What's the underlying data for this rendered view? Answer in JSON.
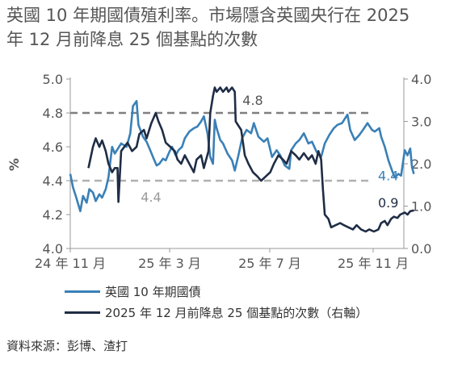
{
  "title": {
    "line1": "英國 10 年期國債殖利率。市場隱含英國央行在 2025",
    "line2": "年 12 月前降息 25 個基點的次數"
  },
  "chart_data": {
    "type": "line",
    "ylabel_left": "%",
    "ylim_left": [
      4.0,
      5.0
    ],
    "yticks_left": [
      "4.0",
      "4.2",
      "4.4",
      "4.6",
      "4.8",
      "5.0"
    ],
    "ylim_right": [
      0.0,
      4.0
    ],
    "yticks_right": [
      "0.0",
      "1.0",
      "2.0",
      "3.0",
      "4.0"
    ],
    "xlabels": [
      "24 年 11 月",
      "25 年 3 月",
      "25 年 7 月",
      "25 年 11 月"
    ],
    "x_domain": [
      "2024-11-01",
      "2025-11-03"
    ],
    "reference_lines": [
      {
        "axis": "left",
        "value": 4.8,
        "label": "4.8",
        "color": "#7f7f7f"
      },
      {
        "axis": "left",
        "value": 4.4,
        "label": "4.4",
        "color": "#b0b0b0"
      }
    ],
    "end_labels": {
      "series1": "4.4",
      "series2": "0.9"
    },
    "series": [
      {
        "name": "英國 10 年期國債",
        "axis": "left",
        "color": "#3a80b6",
        "points": [
          [
            "2024-11-01",
            4.44
          ],
          [
            "2024-11-04",
            4.36
          ],
          [
            "2024-11-07",
            4.31
          ],
          [
            "2024-11-12",
            4.22
          ],
          [
            "2024-11-15",
            4.31
          ],
          [
            "2024-11-19",
            4.27
          ],
          [
            "2024-11-22",
            4.35
          ],
          [
            "2024-11-26",
            4.33
          ],
          [
            "2024-11-29",
            4.28
          ],
          [
            "2024-12-03",
            4.32
          ],
          [
            "2024-12-06",
            4.3
          ],
          [
            "2024-12-10",
            4.35
          ],
          [
            "2024-12-13",
            4.42
          ],
          [
            "2024-12-17",
            4.6
          ],
          [
            "2024-12-20",
            4.56
          ],
          [
            "2024-12-27",
            4.62
          ],
          [
            "2025-01-02",
            4.6
          ],
          [
            "2025-01-06",
            4.68
          ],
          [
            "2025-01-09",
            4.84
          ],
          [
            "2025-01-13",
            4.87
          ],
          [
            "2025-01-15",
            4.73
          ],
          [
            "2025-01-20",
            4.66
          ],
          [
            "2025-01-24",
            4.63
          ],
          [
            "2025-01-28",
            4.58
          ],
          [
            "2025-01-31",
            4.54
          ],
          [
            "2025-02-04",
            4.49
          ],
          [
            "2025-02-07",
            4.5
          ],
          [
            "2025-02-11",
            4.53
          ],
          [
            "2025-02-14",
            4.52
          ],
          [
            "2025-02-18",
            4.57
          ],
          [
            "2025-02-21",
            4.6
          ],
          [
            "2025-02-25",
            4.55
          ],
          [
            "2025-02-28",
            4.58
          ],
          [
            "2025-03-04",
            4.6
          ],
          [
            "2025-03-07",
            4.65
          ],
          [
            "2025-03-12",
            4.69
          ],
          [
            "2025-03-17",
            4.71
          ],
          [
            "2025-03-21",
            4.72
          ],
          [
            "2025-03-25",
            4.75
          ],
          [
            "2025-03-28",
            4.78
          ],
          [
            "2025-04-01",
            4.68
          ],
          [
            "2025-04-04",
            4.54
          ],
          [
            "2025-04-07",
            4.5
          ],
          [
            "2025-04-09",
            4.76
          ],
          [
            "2025-04-11",
            4.71
          ],
          [
            "2025-04-15",
            4.64
          ],
          [
            "2025-04-18",
            4.62
          ],
          [
            "2025-04-23",
            4.56
          ],
          [
            "2025-04-28",
            4.52
          ],
          [
            "2025-05-01",
            4.46
          ],
          [
            "2025-05-05",
            4.55
          ],
          [
            "2025-05-09",
            4.65
          ],
          [
            "2025-05-14",
            4.7
          ],
          [
            "2025-05-19",
            4.68
          ],
          [
            "2025-05-22",
            4.74
          ],
          [
            "2025-05-27",
            4.66
          ],
          [
            "2025-06-02",
            4.63
          ],
          [
            "2025-06-06",
            4.65
          ],
          [
            "2025-06-11",
            4.54
          ],
          [
            "2025-06-16",
            4.58
          ],
          [
            "2025-06-20",
            4.55
          ],
          [
            "2025-06-25",
            4.49
          ],
          [
            "2025-06-30",
            4.47
          ],
          [
            "2025-07-02",
            4.58
          ],
          [
            "2025-07-07",
            4.62
          ],
          [
            "2025-07-11",
            4.64
          ],
          [
            "2025-07-16",
            4.68
          ],
          [
            "2025-07-21",
            4.62
          ],
          [
            "2025-07-25",
            4.63
          ],
          [
            "2025-07-30",
            4.57
          ],
          [
            "2025-08-04",
            4.54
          ],
          [
            "2025-08-08",
            4.62
          ],
          [
            "2025-08-13",
            4.67
          ],
          [
            "2025-08-18",
            4.71
          ],
          [
            "2025-08-22",
            4.73
          ],
          [
            "2025-08-27",
            4.74
          ],
          [
            "2025-09-02",
            4.79
          ],
          [
            "2025-09-05",
            4.7
          ],
          [
            "2025-09-10",
            4.64
          ],
          [
            "2025-09-15",
            4.67
          ],
          [
            "2025-09-19",
            4.7
          ],
          [
            "2025-09-24",
            4.74
          ],
          [
            "2025-09-29",
            4.7
          ],
          [
            "2025-10-02",
            4.69
          ],
          [
            "2025-10-07",
            4.71
          ],
          [
            "2025-10-09",
            4.66
          ],
          [
            "2025-10-13",
            4.6
          ],
          [
            "2025-10-17",
            4.52
          ],
          [
            "2025-10-21",
            4.46
          ],
          [
            "2025-10-24",
            4.42
          ],
          [
            "2025-10-28",
            4.44
          ],
          [
            "2025-10-31",
            4.43
          ],
          [
            "2025-11-04",
            4.58
          ],
          [
            "2025-11-07",
            4.55
          ],
          [
            "2025-11-10",
            4.59
          ],
          [
            "2025-11-12",
            4.48
          ],
          [
            "2025-11-14",
            4.44
          ]
        ]
      },
      {
        "name": "2025 年 12 月前降息 25 個基點的次數（右軸）",
        "axis": "right",
        "color": "#1f2d45",
        "points": [
          [
            "2024-11-21",
            1.9
          ],
          [
            "2024-11-26",
            2.4
          ],
          [
            "2024-11-29",
            2.6
          ],
          [
            "2024-12-03",
            2.4
          ],
          [
            "2024-12-06",
            2.55
          ],
          [
            "2024-12-10",
            2.3
          ],
          [
            "2024-12-13",
            2.0
          ],
          [
            "2024-12-17",
            1.8
          ],
          [
            "2024-12-20",
            1.9
          ],
          [
            "2024-12-23",
            1.9
          ],
          [
            "2024-12-24",
            1.1
          ],
          [
            "2024-12-27",
            2.3
          ],
          [
            "2025-01-03",
            2.5
          ],
          [
            "2025-01-08",
            2.3
          ],
          [
            "2025-01-13",
            2.4
          ],
          [
            "2025-01-16",
            2.7
          ],
          [
            "2025-01-21",
            2.8
          ],
          [
            "2025-01-24",
            2.6
          ],
          [
            "2025-01-29",
            2.95
          ],
          [
            "2025-02-03",
            3.2
          ],
          [
            "2025-02-06",
            3.0
          ],
          [
            "2025-02-10",
            2.8
          ],
          [
            "2025-02-14",
            2.5
          ],
          [
            "2025-02-19",
            2.4
          ],
          [
            "2025-02-24",
            2.3
          ],
          [
            "2025-02-27",
            2.1
          ],
          [
            "2025-03-03",
            2.0
          ],
          [
            "2025-03-07",
            2.2
          ],
          [
            "2025-03-12",
            2.0
          ],
          [
            "2025-03-17",
            1.8
          ],
          [
            "2025-03-20",
            2.1
          ],
          [
            "2025-03-25",
            2.2
          ],
          [
            "2025-03-28",
            1.9
          ],
          [
            "2025-04-02",
            2.3
          ],
          [
            "2025-04-04",
            3.2
          ],
          [
            "2025-04-07",
            3.6
          ],
          [
            "2025-04-09",
            3.8
          ],
          [
            "2025-04-11",
            3.7
          ],
          [
            "2025-04-15",
            3.8
          ],
          [
            "2025-04-18",
            3.7
          ],
          [
            "2025-04-22",
            3.8
          ],
          [
            "2025-04-24",
            3.7
          ],
          [
            "2025-04-28",
            3.8
          ],
          [
            "2025-05-01",
            3.7
          ],
          [
            "2025-05-02",
            3.0
          ],
          [
            "2025-05-05",
            2.9
          ],
          [
            "2025-05-08",
            2.8
          ],
          [
            "2025-05-12",
            2.2
          ],
          [
            "2025-05-16",
            2.0
          ],
          [
            "2025-05-21",
            1.8
          ],
          [
            "2025-05-26",
            1.7
          ],
          [
            "2025-05-30",
            1.6
          ],
          [
            "2025-06-04",
            1.7
          ],
          [
            "2025-06-09",
            1.8
          ],
          [
            "2025-06-13",
            2.0
          ],
          [
            "2025-06-18",
            2.2
          ],
          [
            "2025-06-23",
            2.1
          ],
          [
            "2025-06-27",
            2.0
          ],
          [
            "2025-07-02",
            2.3
          ],
          [
            "2025-07-07",
            2.2
          ],
          [
            "2025-07-11",
            2.1
          ],
          [
            "2025-07-16",
            2.25
          ],
          [
            "2025-07-21",
            2.1
          ],
          [
            "2025-07-25",
            2.2
          ],
          [
            "2025-07-29",
            2.0
          ],
          [
            "2025-08-01",
            2.3
          ],
          [
            "2025-08-04",
            2.1
          ],
          [
            "2025-08-06",
            1.4
          ],
          [
            "2025-08-08",
            0.8
          ],
          [
            "2025-08-12",
            0.7
          ],
          [
            "2025-08-15",
            0.5
          ],
          [
            "2025-08-20",
            0.55
          ],
          [
            "2025-08-25",
            0.6
          ],
          [
            "2025-08-29",
            0.55
          ],
          [
            "2025-09-03",
            0.5
          ],
          [
            "2025-09-08",
            0.45
          ],
          [
            "2025-09-12",
            0.55
          ],
          [
            "2025-09-17",
            0.45
          ],
          [
            "2025-09-22",
            0.4
          ],
          [
            "2025-09-26",
            0.45
          ],
          [
            "2025-10-01",
            0.4
          ],
          [
            "2025-10-06",
            0.45
          ],
          [
            "2025-10-09",
            0.6
          ],
          [
            "2025-10-13",
            0.65
          ],
          [
            "2025-10-16",
            0.55
          ],
          [
            "2025-10-20",
            0.7
          ],
          [
            "2025-10-23",
            0.75
          ],
          [
            "2025-10-27",
            0.72
          ],
          [
            "2025-10-30",
            0.8
          ],
          [
            "2025-11-04",
            0.85
          ],
          [
            "2025-11-07",
            0.8
          ],
          [
            "2025-11-10",
            0.88
          ],
          [
            "2025-11-14",
            0.9
          ]
        ]
      }
    ]
  },
  "source": "資料來源：彭博、渣打"
}
